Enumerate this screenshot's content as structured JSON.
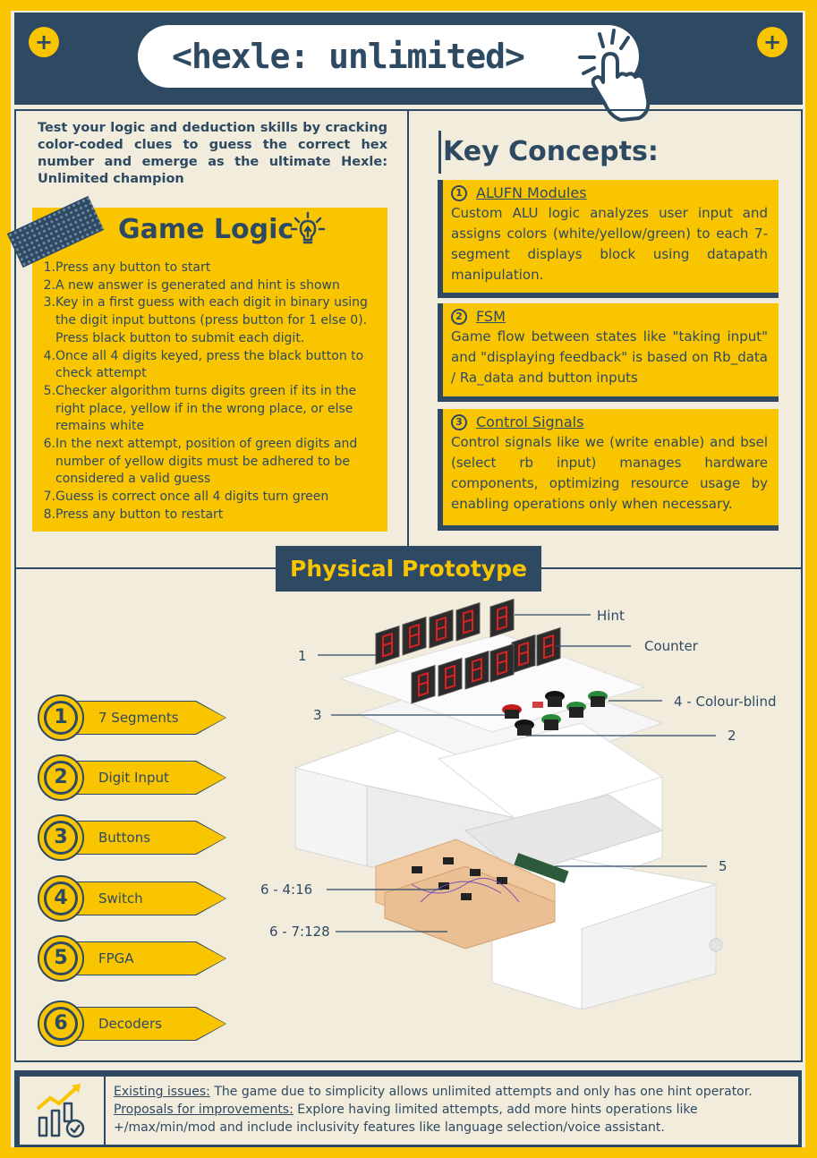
{
  "header": {
    "title": "<hexle: unlimited>"
  },
  "intro": "Test your logic and deduction skills by cracking color-coded clues to guess the correct hex number and emerge as the ultimate Hexle: Unlimited champion",
  "game_logic": {
    "title": "Game Logic",
    "steps": [
      {
        "num": "1.",
        "text": "Press any button to start"
      },
      {
        "num": "2.",
        "text": "A new answer is generated and hint is shown"
      },
      {
        "num": "3.",
        "text": "Key in a first guess with each digit in binary using the digit input buttons (press button for 1 else 0). Press black button to submit each digit."
      },
      {
        "num": "4.",
        "text": "Once all 4 digits keyed, press the black button to check attempt"
      },
      {
        "num": "5.",
        "text": "Checker algorithm turns digits green if its in the right place, yellow if in the wrong place, or else remains white"
      },
      {
        "num": "6.",
        "text": "In the next attempt, position of green digits and number of yellow digits must be adhered to be considered a valid guess"
      },
      {
        "num": "7.",
        "text": "Guess is correct once all 4 digits turn green"
      },
      {
        "num": "8.",
        "text": "Press any button to restart"
      }
    ]
  },
  "key_concepts": {
    "title": "Key Concepts:",
    "items": [
      {
        "num": "1",
        "label": "ALUFN Modules",
        "body": "Custom ALU logic analyzes user input and assigns colors (white/yellow/green) to each 7-segment displays block using datapath manipulation."
      },
      {
        "num": "2",
        "label": "FSM",
        "body": "Game flow between states like \"taking input\" and \"displaying feedback\" is based on Rb_data / Ra_data and button inputs"
      },
      {
        "num": "3",
        "label": "Control Signals",
        "body": "Control signals like we (write enable) and bsel (select rb input) manages hardware components, optimizing resource usage by enabling operations only when necessary."
      }
    ]
  },
  "prototype": {
    "title": "Physical Prototype",
    "legend": [
      {
        "num": "1",
        "label": "7 Segments"
      },
      {
        "num": "2",
        "label": "Digit Input"
      },
      {
        "num": "3",
        "label": "Buttons"
      },
      {
        "num": "4",
        "label": "Switch"
      },
      {
        "num": "5",
        "label": "FPGA"
      },
      {
        "num": "6",
        "label": "Decoders"
      }
    ],
    "callouts": {
      "hint": "Hint",
      "counter": "Counter",
      "one": "1",
      "three": "3",
      "four": "4 - Colour-blind",
      "two": "2",
      "five": "5",
      "six_a": "6 - 4:16",
      "six_b": "6 - 7:128"
    }
  },
  "footer": {
    "issues_label": "Existing issues:",
    "issues_text": " The game due to simplicity allows unlimited attempts and only has one hint operator.",
    "proposals_label": "Proposals for improvements:",
    "proposals_text": " Explore having limited attempts, add more hints operations like +/max/min/mod and include inclusivity features like language selection/voice assistant."
  },
  "colors": {
    "navy": "#2e4a63",
    "yellow": "#f9c500",
    "cream": "#f2ecdc"
  }
}
